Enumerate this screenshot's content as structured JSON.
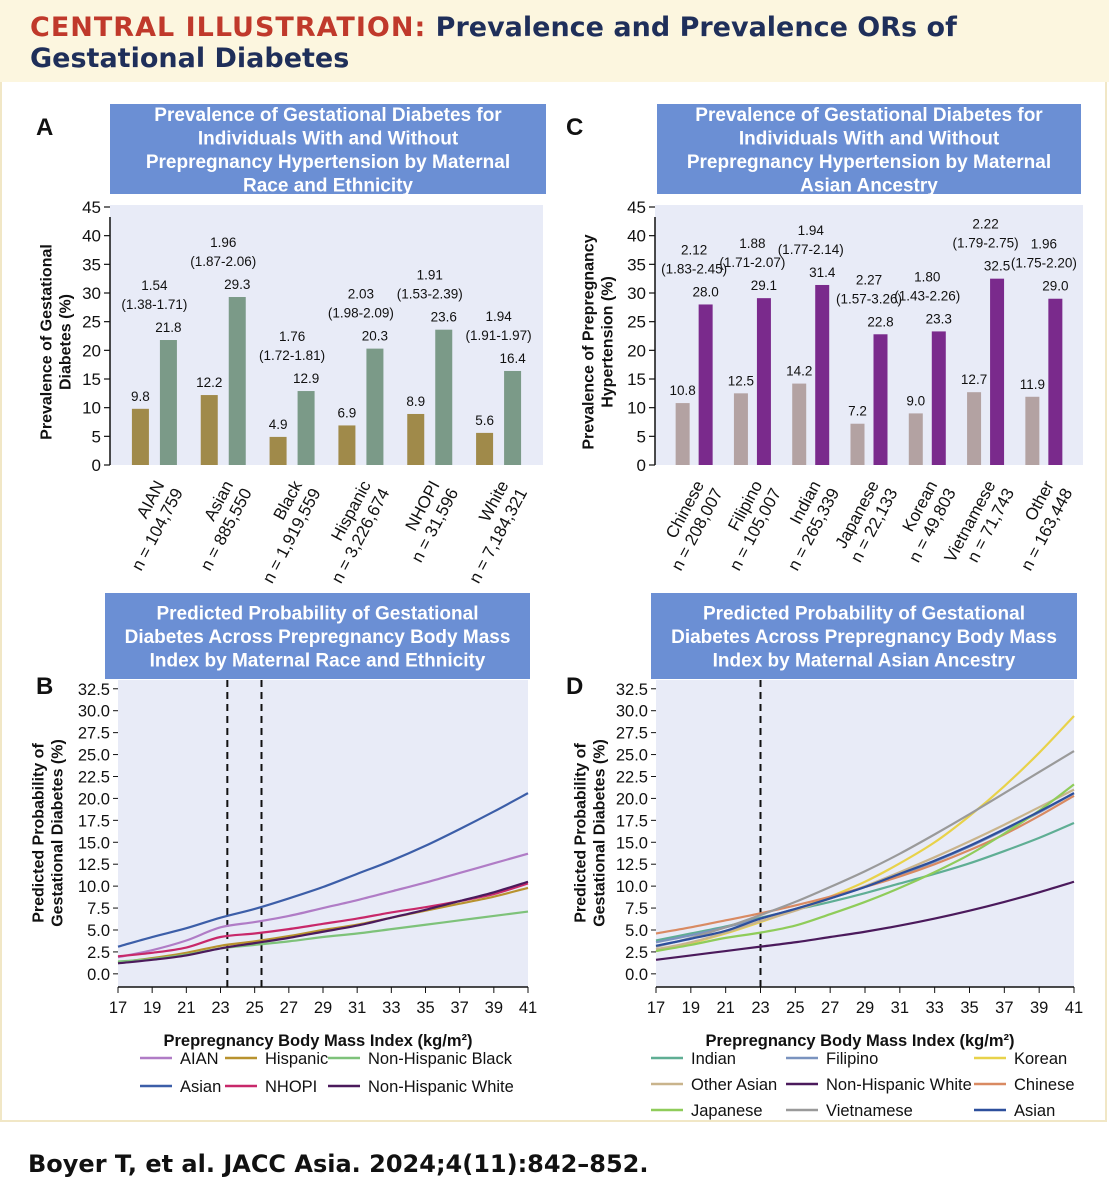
{
  "header": {
    "label": "CENTRAL ILLUSTRATION:",
    "title": "Prevalence and Prevalence ORs of Gestational Diabetes"
  },
  "citation": "Boyer T, et al. JACC Asia. 2024;4(11):842–852.",
  "colors": {
    "panel_bg": "#e8ebf7",
    "title_box": "#6b8fd4",
    "a_without": "#a08a4a",
    "a_with": "#7b9a88",
    "c_without": "#b3a2a2",
    "c_with": "#7a2a8c"
  },
  "chart_data": [
    {
      "panel": "A",
      "type": "bar",
      "title": "Prevalence of Gestational Diabetes for Individuals With and Without Prepregnancy Hypertension by Maternal Race and Ethnicity",
      "ylabel_lines": [
        "Prevalence of Gestational",
        "Diabetes (%)"
      ],
      "ylim": [
        0,
        45
      ],
      "yticks": [
        "0",
        "5",
        "10",
        "15",
        "20",
        "25",
        "30",
        "35",
        "40",
        "45"
      ],
      "categories": [
        {
          "name": "AIAN",
          "n": "n = 104,759"
        },
        {
          "name": "Asian",
          "n": "n = 885,550"
        },
        {
          "name": "Black",
          "n": "n = 1,919,559"
        },
        {
          "name": "Hispanic",
          "n": "n = 3,226,674"
        },
        {
          "name": "NHOPI",
          "n": "n = 31,596"
        },
        {
          "name": "White",
          "n": "n = 7,184,321"
        }
      ],
      "series": [
        {
          "name": "Without prepregnancy hypertension",
          "values": [
            9.8,
            12.2,
            4.9,
            6.9,
            8.9,
            5.6
          ],
          "labels": [
            "9.8",
            "12.2",
            "4.9",
            "6.9",
            "8.9",
            "5.6"
          ]
        },
        {
          "name": "With prepregnancy hypertension",
          "values": [
            21.8,
            29.3,
            12.9,
            20.3,
            23.6,
            16.4
          ],
          "labels": [
            "21.8",
            "29.3",
            "12.9",
            "20.3",
            "23.6",
            "16.4"
          ]
        }
      ],
      "or": [
        "1.54",
        "1.96",
        "1.76",
        "2.03",
        "1.91",
        "1.94"
      ],
      "ci": [
        "(1.38-1.71)",
        "(1.87-2.06)",
        "(1.72-1.81)",
        "(1.98-2.09)",
        "(1.53-2.39)",
        "(1.91-1.97)"
      ]
    },
    {
      "panel": "C",
      "type": "bar",
      "title": "Prevalence of Gestational Diabetes for Individuals With and Without Prepregnancy Hypertension by Maternal Asian Ancestry",
      "ylabel_lines": [
        "Prevalence of Prepregnancy",
        "Hypertension (%)"
      ],
      "ylim": [
        0,
        45
      ],
      "yticks": [
        "0",
        "5",
        "10",
        "15",
        "20",
        "25",
        "30",
        "35",
        "40",
        "45"
      ],
      "categories": [
        {
          "name": "Chinese",
          "n": "n = 208,007"
        },
        {
          "name": "Filipino",
          "n": "n = 105,007"
        },
        {
          "name": "Indian",
          "n": "n = 265,339"
        },
        {
          "name": "Japanese",
          "n": "n = 22,133"
        },
        {
          "name": "Korean",
          "n": "n = 49,803"
        },
        {
          "name": "Vietnamese",
          "n": "n = 71,743"
        },
        {
          "name": "Other",
          "n": "n = 163,448"
        }
      ],
      "series": [
        {
          "name": "Without prepregnancy hypertension",
          "values": [
            10.8,
            12.5,
            14.2,
            7.2,
            9.0,
            12.7,
            11.9
          ],
          "labels": [
            "10.8",
            "12.5",
            "14.2",
            "7.2",
            "9.0",
            "12.7",
            "11.9"
          ]
        },
        {
          "name": "With prepregnancy hypertension",
          "values": [
            28.0,
            29.1,
            31.4,
            22.8,
            23.3,
            32.5,
            29.0
          ],
          "labels": [
            "28.0",
            "29.1",
            "31.4",
            "22.8",
            "23.3",
            "32.5",
            "29.0"
          ]
        }
      ],
      "or": [
        "2.12",
        "1.88",
        "1.94",
        "2.27",
        "1.80",
        "2.22",
        "1.96"
      ],
      "ci": [
        "(1.83-2.45)",
        "(1.71-2.07)",
        "(1.77-2.14)",
        "(1.57-3.26)",
        "(1.43-2.26)",
        "(1.79-2.75)",
        "(1.75-2.20)"
      ]
    },
    {
      "panel": "B",
      "type": "line",
      "title": "Predicted Probability of Gestational Diabetes Across Prepregnancy Body Mass Index by Maternal Race and Ethnicity",
      "xlabel": "Prepregnancy Body Mass Index (kg/m²)",
      "ylabel_lines": [
        "Predicted Probability of",
        "Gestational Diabetes (%)"
      ],
      "xlim": [
        17,
        41
      ],
      "ylim": [
        -1.5,
        33.5
      ],
      "xticks": [
        "17",
        "19",
        "21",
        "23",
        "25",
        "27",
        "29",
        "31",
        "33",
        "35",
        "37",
        "39",
        "41"
      ],
      "yticks": [
        "0.0",
        "2.5",
        "5.0",
        "7.5",
        "10.0",
        "12.5",
        "15.0",
        "17.5",
        "20.0",
        "22.5",
        "25.0",
        "27.5",
        "30.0",
        "32.5"
      ],
      "vlines": [
        23.4,
        25.4
      ],
      "x": [
        17,
        19,
        21,
        23,
        25,
        27,
        29,
        31,
        33,
        35,
        37,
        39,
        41
      ],
      "series": [
        {
          "name": "AIAN",
          "color": "#b07cc6",
          "values": [
            1.9,
            2.7,
            3.8,
            5.3,
            5.9,
            6.6,
            7.5,
            8.4,
            9.4,
            10.4,
            11.5,
            12.6,
            13.7
          ]
        },
        {
          "name": "Hispanic",
          "color": "#b8922e",
          "values": [
            1.3,
            1.8,
            2.4,
            3.2,
            3.7,
            4.3,
            5.0,
            5.6,
            6.4,
            7.2,
            8.0,
            8.8,
            9.8
          ]
        },
        {
          "name": "Non-Hispanic Black",
          "color": "#7ec27a",
          "values": [
            1.4,
            1.7,
            2.2,
            2.9,
            3.3,
            3.7,
            4.2,
            4.6,
            5.1,
            5.6,
            6.1,
            6.6,
            7.1
          ]
        },
        {
          "name": "Asian",
          "color": "#3c5ea8",
          "values": [
            3.1,
            4.2,
            5.2,
            6.4,
            7.4,
            8.6,
            9.9,
            11.4,
            12.9,
            14.6,
            16.5,
            18.5,
            20.6
          ]
        },
        {
          "name": "NHOPI",
          "color": "#c8286a",
          "values": [
            2.0,
            2.4,
            3.0,
            4.2,
            4.6,
            5.1,
            5.7,
            6.3,
            7.0,
            7.6,
            8.3,
            9.1,
            10.3
          ]
        },
        {
          "name": "Non-Hispanic White",
          "color": "#4b1a5c",
          "values": [
            1.2,
            1.6,
            2.1,
            2.9,
            3.5,
            4.1,
            4.8,
            5.5,
            6.4,
            7.3,
            8.3,
            9.3,
            10.5
          ]
        }
      ]
    },
    {
      "panel": "D",
      "type": "line",
      "title": "Predicted Probability of Gestational Diabetes Across Prepregnancy Body Mass Index by Maternal Asian Ancestry",
      "xlabel": "Prepregnancy Body Mass Index (kg/m²)",
      "ylabel_lines": [
        "Predicted Probability of",
        "Gestational Diabetes (%)"
      ],
      "xlim": [
        17,
        41
      ],
      "ylim": [
        -1.5,
        33.5
      ],
      "xticks": [
        "17",
        "19",
        "21",
        "23",
        "25",
        "27",
        "29",
        "31",
        "33",
        "35",
        "37",
        "39",
        "41"
      ],
      "yticks": [
        "0.0",
        "2.5",
        "5.0",
        "7.5",
        "10.0",
        "12.5",
        "15.0",
        "17.5",
        "20.0",
        "22.5",
        "25.0",
        "27.5",
        "30.0",
        "32.5"
      ],
      "vlines": [
        23
      ],
      "x": [
        17,
        19,
        21,
        23,
        25,
        27,
        29,
        31,
        33,
        35,
        37,
        39,
        41
      ],
      "series": [
        {
          "name": "Indian",
          "color": "#5fae94",
          "values": [
            3.8,
            4.6,
            5.4,
            6.4,
            7.3,
            8.2,
            9.2,
            10.3,
            11.4,
            12.6,
            14.0,
            15.5,
            17.2
          ]
        },
        {
          "name": "Filipino",
          "color": "#7a93bf",
          "values": [
            3.6,
            4.4,
            5.3,
            6.3,
            7.4,
            8.6,
            9.9,
            11.3,
            12.8,
            14.5,
            16.4,
            18.4,
            20.6
          ]
        },
        {
          "name": "Korean",
          "color": "#e8d24a",
          "values": [
            2.6,
            3.5,
            4.6,
            5.9,
            7.3,
            8.8,
            10.5,
            12.6,
            15.0,
            18.0,
            21.4,
            25.2,
            29.4
          ]
        },
        {
          "name": "Other Asian",
          "color": "#c9b48c",
          "values": [
            2.8,
            3.6,
            4.7,
            6.0,
            7.2,
            8.6,
            10.0,
            11.6,
            13.3,
            15.1,
            17.0,
            19.0,
            21.0
          ]
        },
        {
          "name": "Non-Hispanic White",
          "color": "#4b1a5c",
          "values": [
            1.6,
            2.1,
            2.6,
            3.1,
            3.6,
            4.2,
            4.8,
            5.5,
            6.3,
            7.2,
            8.2,
            9.3,
            10.5
          ]
        },
        {
          "name": "Chinese",
          "color": "#d98a62",
          "values": [
            4.6,
            5.3,
            6.1,
            6.9,
            7.8,
            8.8,
            9.9,
            11.1,
            12.5,
            14.1,
            15.9,
            18.0,
            20.3
          ]
        },
        {
          "name": "Japanese",
          "color": "#8fcc5a",
          "values": [
            2.6,
            3.3,
            4.1,
            4.7,
            5.5,
            6.8,
            8.2,
            9.8,
            11.6,
            13.6,
            16.0,
            18.6,
            21.6
          ]
        },
        {
          "name": "Vietnamese",
          "color": "#9a9a9a",
          "values": [
            3.1,
            4.1,
            5.3,
            6.7,
            8.2,
            9.9,
            11.7,
            13.7,
            15.9,
            18.2,
            20.6,
            23.0,
            25.4
          ]
        },
        {
          "name": "Asian",
          "color": "#2d4f9c",
          "values": [
            3.2,
            4.0,
            4.9,
            6.3,
            7.4,
            8.6,
            9.9,
            11.4,
            12.9,
            14.6,
            16.5,
            18.5,
            20.6
          ]
        }
      ]
    }
  ]
}
